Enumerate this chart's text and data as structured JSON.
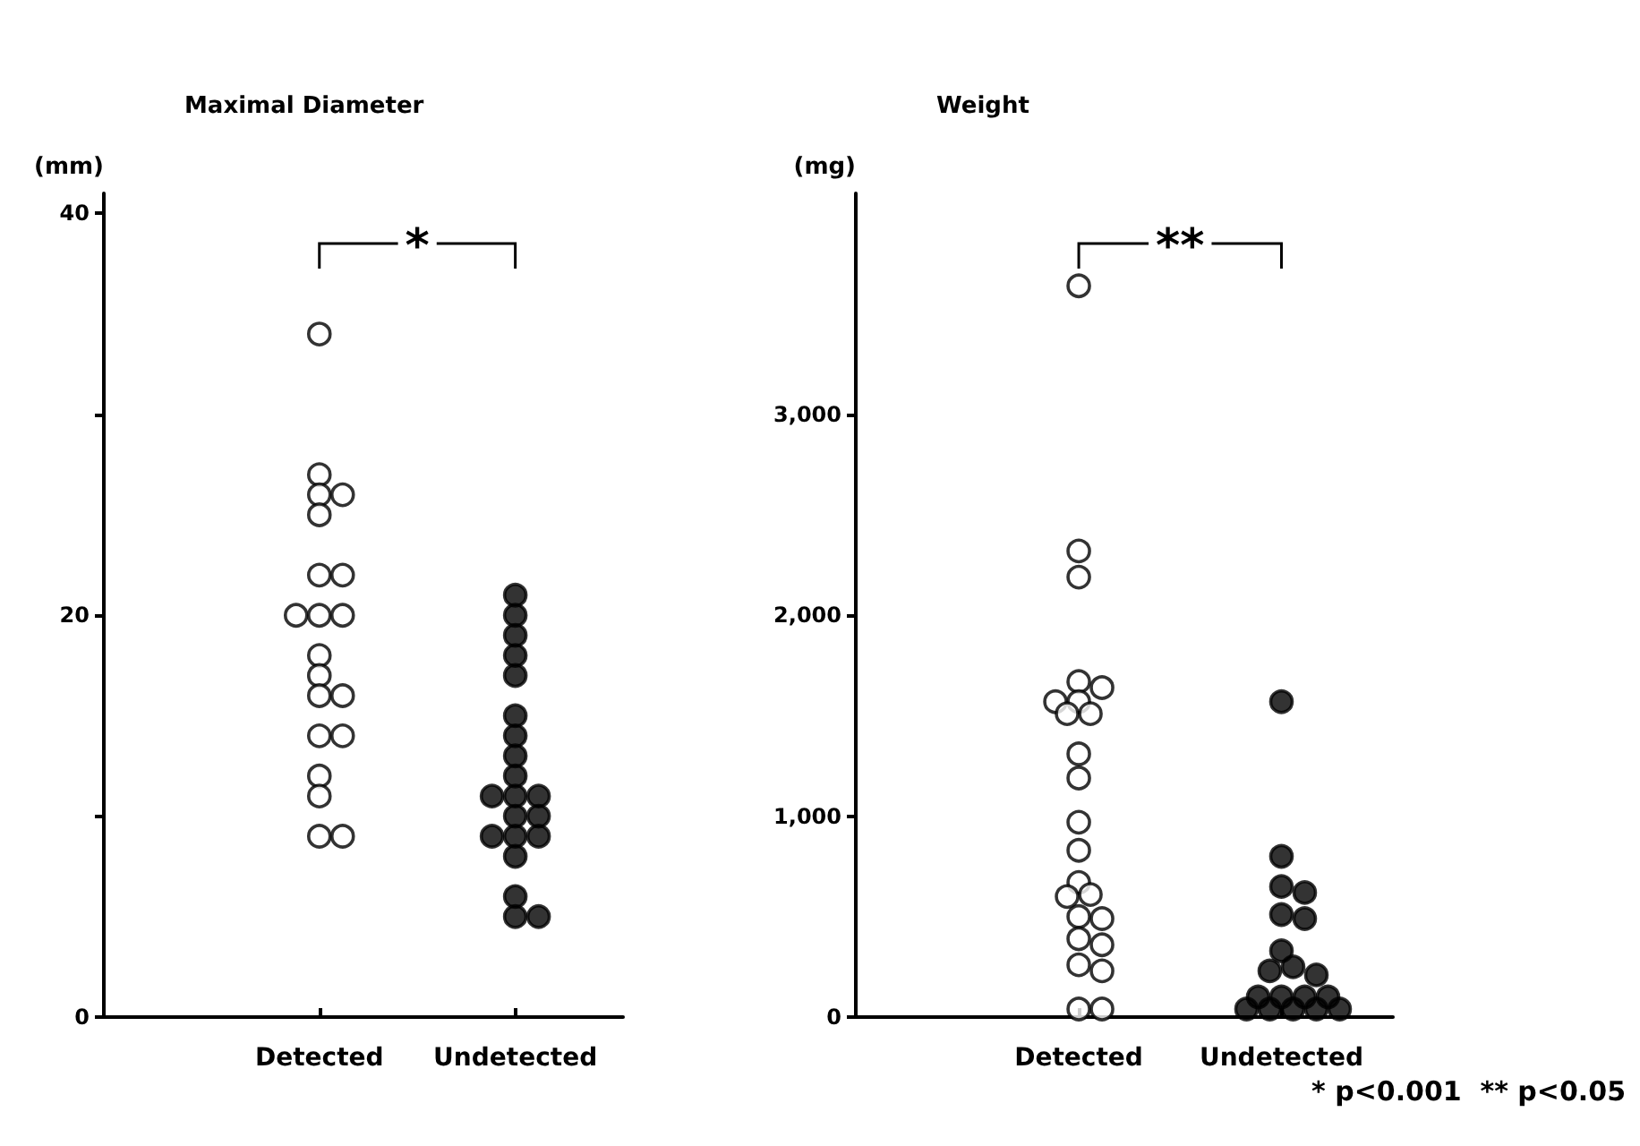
{
  "chart_data": [
    {
      "type": "scatter",
      "title": "Maximal Diameter",
      "ylabel": "(mm)",
      "categories": [
        "Detected",
        "Undetected"
      ],
      "marker": "circle",
      "grid": false,
      "ylim": [
        0,
        41
      ],
      "yticks": [
        0,
        {
          "value": 10,
          "label": null
        },
        20,
        {
          "value": 30,
          "label": null
        },
        40
      ],
      "series": [
        {
          "color": "#ffffff",
          "x": [
            "Detected",
            "Detected",
            "Detected",
            "Detected",
            "Detected",
            "Detected",
            "Detected",
            "Detected",
            "Detected",
            "Detected",
            "Detected",
            "Detected",
            "Detected",
            "Detected",
            "Detected",
            "Detected",
            "Detected",
            "Detected",
            "Detected",
            "Detected"
          ],
          "values": [
            34,
            27,
            26,
            26,
            25,
            22,
            22,
            20,
            20,
            20,
            18,
            17,
            16,
            16,
            14,
            14,
            12,
            11,
            9,
            9
          ]
        },
        {
          "color": "#000000",
          "x": [
            "Undetected",
            "Undetected",
            "Undetected",
            "Undetected",
            "Undetected",
            "Undetected",
            "Undetected",
            "Undetected",
            "Undetected",
            "Undetected",
            "Undetected",
            "Undetected",
            "Undetected",
            "Undetected",
            "Undetected",
            "Undetected",
            "Undetected",
            "Undetected",
            "Undetected",
            "Undetected",
            "Undetected"
          ],
          "values": [
            21,
            20,
            19,
            18,
            17,
            15,
            14,
            13,
            12,
            11,
            11,
            11,
            10,
            10,
            9,
            9,
            9,
            8,
            6,
            5,
            5
          ]
        }
      ],
      "annotations": [
        "*"
      ]
    },
    {
      "type": "scatter",
      "title": "Weight",
      "ylabel": "(mg)",
      "categories": [
        "Detected",
        "Undetected"
      ],
      "marker": "circle",
      "grid": false,
      "ylim": [
        0,
        4100
      ],
      "yticks": [
        0,
        {
          "value": 1000,
          "label": "1,000"
        },
        {
          "value": 2000,
          "label": "2,000"
        },
        {
          "value": 3000,
          "label": "3,000"
        }
      ],
      "series": [
        {
          "color": "#ffffff",
          "x": [
            "Detected",
            "Detected",
            "Detected",
            "Detected",
            "Detected",
            "Detected",
            "Detected",
            "Detected",
            "Detected",
            "Detected",
            "Detected",
            "Detected",
            "Detected",
            "Detected",
            "Detected",
            "Detected",
            "Detected",
            "Detected",
            "Detected",
            "Detected",
            "Detected",
            "Detected",
            "Detected",
            "Detected"
          ],
          "values": [
            3640,
            2320,
            2190,
            1670,
            1640,
            1570,
            1570,
            1510,
            1510,
            1310,
            1190,
            970,
            830,
            670,
            610,
            600,
            500,
            490,
            390,
            360,
            260,
            230,
            40,
            40
          ]
        },
        {
          "color": "#000000",
          "x": [
            "Undetected",
            "Undetected",
            "Undetected",
            "Undetected",
            "Undetected",
            "Undetected",
            "Undetected",
            "Undetected",
            "Undetected",
            "Undetected",
            "Undetected",
            "Undetected",
            "Undetected",
            "Undetected",
            "Undetected",
            "Undetected",
            "Undetected",
            "Undetected",
            "Undetected"
          ],
          "values": [
            1570,
            800,
            650,
            620,
            510,
            490,
            330,
            250,
            230,
            210,
            100,
            100,
            100,
            100,
            40,
            40,
            40,
            40,
            40
          ]
        }
      ],
      "annotations": [
        "**",
        "* p<0.001  ** p<0.05"
      ]
    }
  ]
}
